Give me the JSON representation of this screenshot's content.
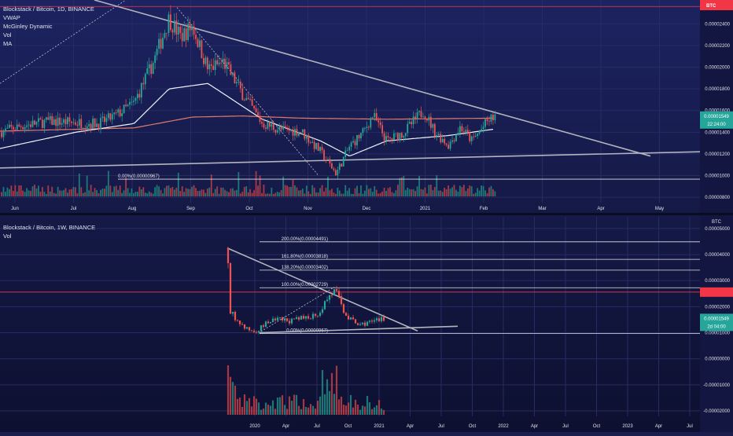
{
  "colors": {
    "candle_up": "#26a69a",
    "candle_down": "#ef5350",
    "vol_up": "#1e8a80",
    "vol_down": "#c13f48",
    "price_badge": "#26a69a",
    "resistance_line": "#f23645",
    "trendline": "#b2b5be",
    "vwap": "#f0f3fa",
    "mcginley": "#e07a6e"
  },
  "chart_data": [
    {
      "type": "candlestick",
      "title": "Blockstack / Bitcoin, 1D, BINANCE",
      "indicators": [
        "VWAP",
        "McGinley Dynamic",
        "Vol",
        "MA"
      ],
      "currency_badge": "BTC",
      "price_label": "0.00001549",
      "countdown_label": "22:24:00",
      "axis_labels": [
        "0.00002400",
        "0.00002200",
        "0.00002000",
        "0.00001800",
        "0.00001600",
        "0.00001400",
        "0.00001200",
        "0.00001000",
        "0.00000800"
      ],
      "x_tick_labels": [
        "Jun",
        "Jul",
        "Aug",
        "Sep",
        "Oct",
        "Nov",
        "Dec",
        "2021",
        "Feb",
        "Mar",
        "Apr",
        "May"
      ],
      "fib_label": "0.00%(0.00000967)",
      "ylim": [
        7.5e-06,
        2.62e-05
      ],
      "resistance_level": 2.56e-05,
      "trend_upper": {
        "from": {
          "x": "May 20",
          "y": 2.62e-05
        },
        "to": {
          "x": "Apr 30",
          "y": 1.18e-05
        }
      },
      "trend_lower": {
        "from": {
          "x": "May 20",
          "y": 1.07e-05
        },
        "to": {
          "x": "May 31",
          "y": 1.22e-05
        }
      },
      "ohlc_anchors": [
        {
          "x": "May 20",
          "y": 1.4e-05
        },
        {
          "x": "May 31",
          "y": 1.46e-05
        },
        {
          "x": "Jun 14",
          "y": 1.5e-05
        },
        {
          "x": "Jun 28",
          "y": 1.49e-05
        },
        {
          "x": "Jul 10",
          "y": 1.48e-05
        },
        {
          "x": "Jul 19",
          "y": 1.56e-05
        },
        {
          "x": "Jul 28",
          "y": 1.67e-05
        },
        {
          "x": "Aug 07",
          "y": 2.05e-05
        },
        {
          "x": "Aug 15",
          "y": 2.45e-05
        },
        {
          "x": "Aug 21",
          "y": 2.28e-05
        },
        {
          "x": "Aug 27",
          "y": 2.38e-05
        },
        {
          "x": "Sep 04",
          "y": 1.98e-05
        },
        {
          "x": "Sep 12",
          "y": 2.05e-05
        },
        {
          "x": "Sep 22",
          "y": 1.75e-05
        },
        {
          "x": "Oct 02",
          "y": 1.48e-05
        },
        {
          "x": "Oct 12",
          "y": 1.42e-05
        },
        {
          "x": "Oct 22",
          "y": 1.41e-05
        },
        {
          "x": "Nov 01",
          "y": 1.22e-05
        },
        {
          "x": "Nov 09",
          "y": 1.02e-05
        },
        {
          "x": "Nov 16",
          "y": 1.27e-05
        },
        {
          "x": "Nov 23",
          "y": 1.4e-05
        },
        {
          "x": "Nov 28",
          "y": 1.56e-05
        },
        {
          "x": "Dec 05",
          "y": 1.32e-05
        },
        {
          "x": "Dec 14",
          "y": 1.4e-05
        },
        {
          "x": "Dec 24",
          "y": 1.6e-05
        },
        {
          "x": "Dec 30",
          "y": 1.4e-05
        },
        {
          "x": "Jan 06",
          "y": 1.28e-05
        },
        {
          "x": "Jan 12",
          "y": 1.45e-05
        },
        {
          "x": "Jan 18",
          "y": 1.32e-05
        },
        {
          "x": "Jan 26",
          "y": 1.5e-05
        },
        {
          "x": "Jan 30",
          "y": 1.55e-05
        }
      ],
      "vwap_anchors": [
        {
          "x": "May 20",
          "y": 1.25e-05
        },
        {
          "x": "Jun 28",
          "y": 1.4e-05
        },
        {
          "x": "Jul 28",
          "y": 1.48e-05
        },
        {
          "x": "Aug 15",
          "y": 1.8e-05
        },
        {
          "x": "Sep 04",
          "y": 1.85e-05
        },
        {
          "x": "Oct 02",
          "y": 1.52e-05
        },
        {
          "x": "Nov 01",
          "y": 1.32e-05
        },
        {
          "x": "Nov 16",
          "y": 1.18e-05
        },
        {
          "x": "Dec 05",
          "y": 1.32e-05
        },
        {
          "x": "Jan 06",
          "y": 1.37e-05
        },
        {
          "x": "Jan 30",
          "y": 1.43e-05
        }
      ],
      "mcginley_anchors": [
        {
          "x": "May 20",
          "y": 1.41e-05
        },
        {
          "x": "Jul 28",
          "y": 1.44e-05
        },
        {
          "x": "Aug 27",
          "y": 1.54e-05
        },
        {
          "x": "Sep 22",
          "y": 1.55e-05
        },
        {
          "x": "Oct 22",
          "y": 1.53e-05
        },
        {
          "x": "Dec 05",
          "y": 1.52e-05
        },
        {
          "x": "Jan 30",
          "y": 1.53e-05
        }
      ]
    },
    {
      "type": "candlestick",
      "title": "Blockstack / Bitcoin, 1W, BINANCE",
      "indicators": [
        "Vol"
      ],
      "currency_badge": "BTC",
      "price_label": "0.00001549",
      "countdown_label": "2d 04:00",
      "axis_labels": [
        "0.00005000",
        "0.00004000",
        "0.00003000",
        "0.00002000",
        "0.00001000",
        "0.00000000",
        "-0.00001000",
        "-0.00002000"
      ],
      "x_tick_labels": [
        "2020",
        "Apr",
        "Jul",
        "Oct",
        "2021",
        "Apr",
        "Jul",
        "Oct",
        "2022",
        "Apr",
        "Jul",
        "Oct",
        "2023",
        "Apr",
        "Jul"
      ],
      "ylim": [
        -2.15e-05,
        5.45e-05
      ],
      "resistance_level": 2.56e-05,
      "fib_levels": [
        {
          "label": "200.00%(0.00004491)",
          "value": 4.491e-05
        },
        {
          "label": "161.80%(0.00003818)",
          "value": 3.818e-05
        },
        {
          "label": "138.20%(0.00003402)",
          "value": 3.402e-05
        },
        {
          "label": "100.00%(0.00002729)",
          "value": 2.729e-05
        },
        {
          "label": "0.00%(0.00000967)",
          "value": 9.67e-06
        }
      ]
    }
  ]
}
